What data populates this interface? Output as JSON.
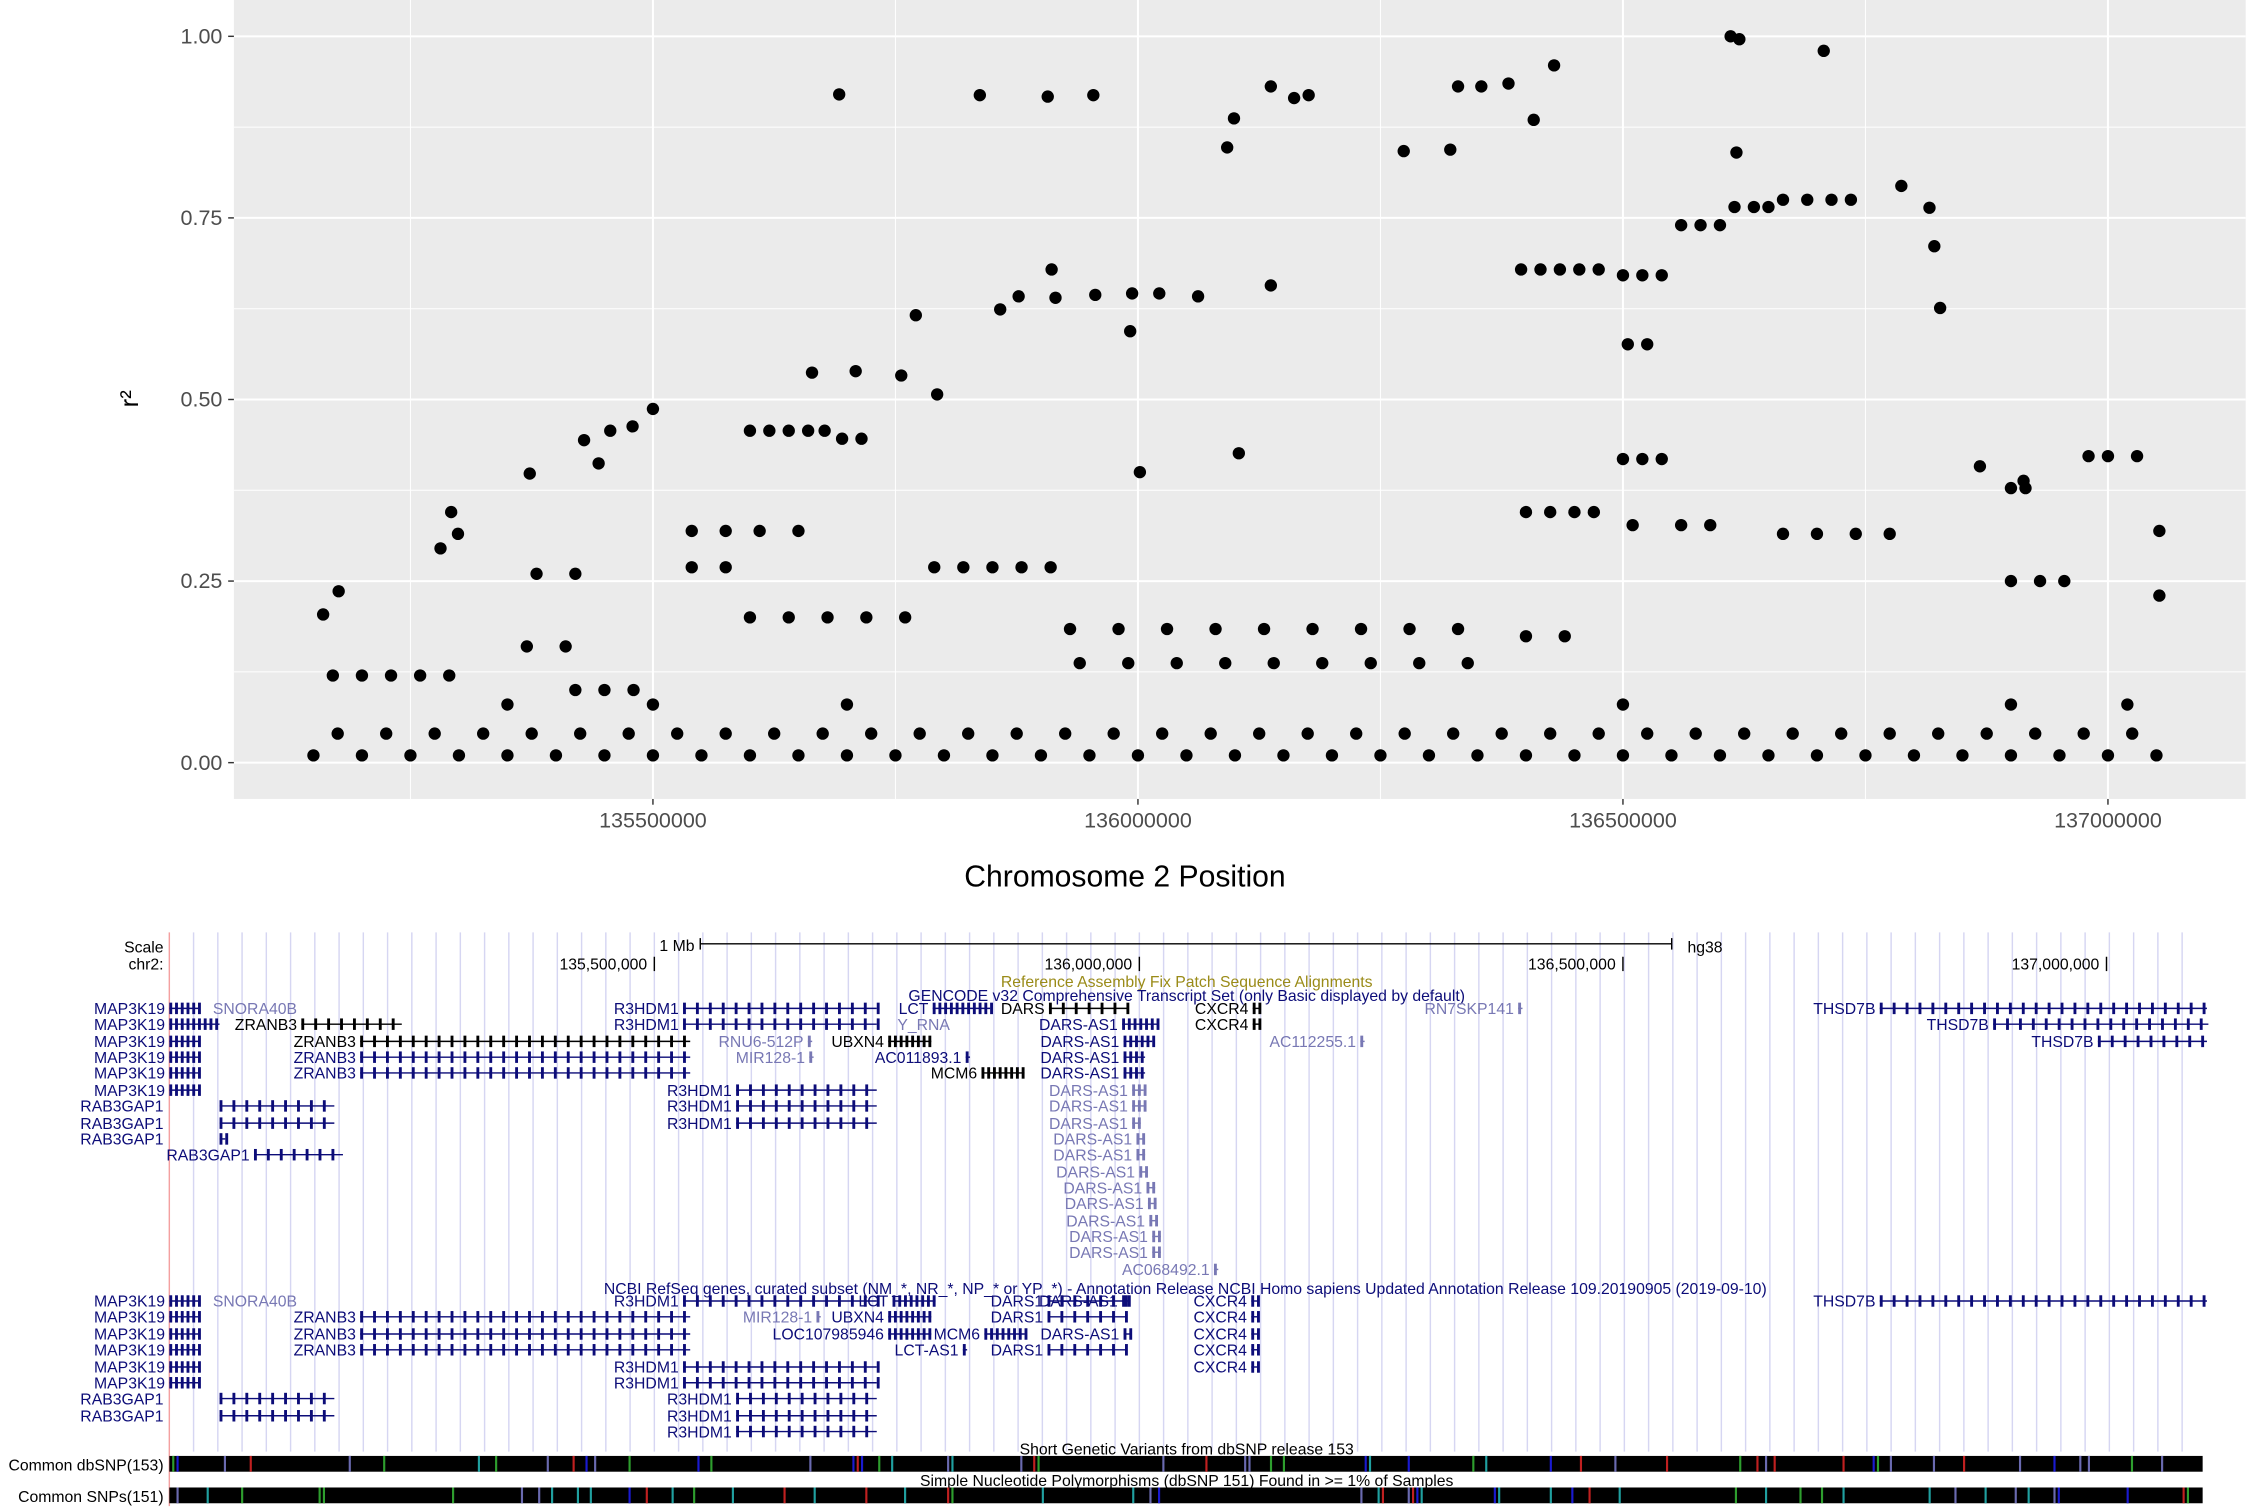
{
  "chart_data": {
    "type": "scatter",
    "xlabel": "Chromosome 2 Position",
    "ylabel": "r²",
    "color": "#000000",
    "panel_color": "#ebebeb",
    "grid": true,
    "xlim": [
      135068000,
      137142000
    ],
    "ylim": [
      -0.05,
      1.05
    ],
    "xticks": [
      135500000,
      136000000,
      136500000,
      137000000
    ],
    "yticks": [
      {
        "value": 0,
        "label": "0.00"
      },
      {
        "value": 0.25,
        "label": "0.25"
      },
      {
        "value": 0.5,
        "label": "0.50"
      },
      {
        "value": 0.75,
        "label": "0.75"
      },
      {
        "value": 1,
        "label": "1.00"
      }
    ],
    "x": [
      135150000,
      135200000,
      135250000,
      135300000,
      135350000,
      135400000,
      135450000,
      135500000,
      135550000,
      135600000,
      135650000,
      135700000,
      135750000,
      135800000,
      135850000,
      135900000,
      135950000,
      136000000,
      136050000,
      136100000,
      136150000,
      136200000,
      136250000,
      136300000,
      136350000,
      136400000,
      136450000,
      136500000,
      136550000,
      136600000,
      136650000,
      136700000,
      136750000,
      136800000,
      136850000,
      136900000,
      136950000,
      137000000,
      137050000,
      135175000,
      135225000,
      135275000,
      135325000,
      135375000,
      135425000,
      135475000,
      135525000,
      135575000,
      135625000,
      135675000,
      135725000,
      135775000,
      135825000,
      135875000,
      135925000,
      135975000,
      136025000,
      136075000,
      136125000,
      136175000,
      136225000,
      136275000,
      136325000,
      136375000,
      136425000,
      136475000,
      136525000,
      136575000,
      136625000,
      136675000,
      136725000,
      136775000,
      136825000,
      136875000,
      136925000,
      136975000,
      137025000,
      135692000,
      135837000,
      135907000,
      135954000,
      136092000,
      136099000,
      136137000,
      136161000,
      136176000,
      136274000,
      136322000,
      136330000,
      136354000,
      136382000,
      136408000,
      136429000,
      136611000,
      136620000,
      136707000,
      136617000,
      135771000,
      135793000,
      135858000,
      135877000,
      135911000,
      135915000,
      135956000,
      135994000,
      135992000,
      136022000,
      136062000,
      136137000,
      136104000,
      136002000,
      136395000,
      136415000,
      136435000,
      136455000,
      136475000,
      136500000,
      136520000,
      136540000,
      136505000,
      136525000,
      136560000,
      136580000,
      136600000,
      136615000,
      136635000,
      136650000,
      136665000,
      136690000,
      136715000,
      136735000,
      136787000,
      136816000,
      136821000,
      136827000,
      135600000,
      135620000,
      135640000,
      135660000,
      135677000,
      135695000,
      135715000,
      135664000,
      135709000,
      135756000,
      136500000,
      136520000,
      136540000,
      136980000,
      137000000,
      137030000,
      135373000,
      135429000,
      135456000,
      135479000,
      135500000,
      135444000,
      135292000,
      135299000,
      135281000,
      136400000,
      136425000,
      136450000,
      136470000,
      136510000,
      136560000,
      136590000,
      136665000,
      136700000,
      136740000,
      136775000,
      135540000,
      135575000,
      135610000,
      135650000,
      135540000,
      135575000,
      135790000,
      135820000,
      135850000,
      135880000,
      135910000,
      135930000,
      135980000,
      136030000,
      136080000,
      136130000,
      136180000,
      136230000,
      136280000,
      136330000,
      135940000,
      135990000,
      136040000,
      136090000,
      136140000,
      136190000,
      136240000,
      136290000,
      136340000,
      136400000,
      136440000,
      136900000,
      136930000,
      136955000,
      136900000,
      136915000,
      136868000,
      136913000,
      137053000,
      137053000,
      135170000,
      135200000,
      135230000,
      135260000,
      135290000,
      135160000,
      135176000,
      135420000,
      135450000,
      135480000,
      135600000,
      135640000,
      135680000,
      135720000,
      135760000,
      135350000,
      135500000,
      135700000,
      136500000,
      136900000,
      137020000,
      135370000,
      135410000,
      135380000,
      135420000
    ],
    "values": [
      0.01,
      0.01,
      0.01,
      0.01,
      0.01,
      0.01,
      0.01,
      0.01,
      0.01,
      0.01,
      0.01,
      0.01,
      0.01,
      0.01,
      0.01,
      0.01,
      0.01,
      0.01,
      0.01,
      0.01,
      0.01,
      0.01,
      0.01,
      0.01,
      0.01,
      0.01,
      0.01,
      0.01,
      0.01,
      0.01,
      0.01,
      0.01,
      0.01,
      0.01,
      0.01,
      0.01,
      0.01,
      0.01,
      0.01,
      0.04,
      0.04,
      0.04,
      0.04,
      0.04,
      0.04,
      0.04,
      0.04,
      0.04,
      0.04,
      0.04,
      0.04,
      0.04,
      0.04,
      0.04,
      0.04,
      0.04,
      0.04,
      0.04,
      0.04,
      0.04,
      0.04,
      0.04,
      0.04,
      0.04,
      0.04,
      0.04,
      0.04,
      0.04,
      0.04,
      0.04,
      0.04,
      0.04,
      0.04,
      0.04,
      0.04,
      0.04,
      0.04,
      0.92,
      0.919,
      0.917,
      0.919,
      0.847,
      0.887,
      0.931,
      0.915,
      0.919,
      0.842,
      0.844,
      0.931,
      0.931,
      0.935,
      0.885,
      0.96,
      1.0,
      0.996,
      0.98,
      0.84,
      0.616,
      0.507,
      0.624,
      0.642,
      0.679,
      0.64,
      0.644,
      0.646,
      0.594,
      0.646,
      0.642,
      0.657,
      0.426,
      0.4,
      0.679,
      0.679,
      0.679,
      0.679,
      0.679,
      0.671,
      0.671,
      0.671,
      0.576,
      0.576,
      0.74,
      0.74,
      0.74,
      0.765,
      0.765,
      0.765,
      0.775,
      0.775,
      0.775,
      0.775,
      0.794,
      0.764,
      0.711,
      0.626,
      0.457,
      0.457,
      0.457,
      0.457,
      0.457,
      0.446,
      0.446,
      0.537,
      0.539,
      0.533,
      0.418,
      0.418,
      0.418,
      0.422,
      0.422,
      0.422,
      0.398,
      0.444,
      0.457,
      0.463,
      0.487,
      0.412,
      0.345,
      0.315,
      0.295,
      0.345,
      0.345,
      0.345,
      0.345,
      0.327,
      0.327,
      0.327,
      0.315,
      0.315,
      0.315,
      0.315,
      0.319,
      0.319,
      0.319,
      0.319,
      0.269,
      0.269,
      0.269,
      0.269,
      0.269,
      0.269,
      0.269,
      0.184,
      0.184,
      0.184,
      0.184,
      0.184,
      0.184,
      0.184,
      0.184,
      0.184,
      0.137,
      0.137,
      0.137,
      0.137,
      0.137,
      0.137,
      0.137,
      0.137,
      0.137,
      0.174,
      0.174,
      0.25,
      0.25,
      0.25,
      0.378,
      0.378,
      0.408,
      0.388,
      0.319,
      0.23,
      0.12,
      0.12,
      0.12,
      0.12,
      0.12,
      0.204,
      0.236,
      0.1,
      0.1,
      0.1,
      0.2,
      0.2,
      0.2,
      0.2,
      0.2,
      0.08,
      0.08,
      0.08,
      0.08,
      0.08,
      0.08,
      0.16,
      0.16,
      0.26,
      0.26
    ]
  },
  "genome_browser": {
    "scale_label": "Scale",
    "chrom_label": "chr2:",
    "scale_bar_label": "1 Mb",
    "assembly": "hg38",
    "positions": [
      "135,500,000",
      "136,000,000",
      "136,500,000",
      "137,000,000"
    ],
    "fix_patch_track": "Reference Assembly Fix Patch Sequence Alignments",
    "gencode_track": "GENCODE v32 Comprehensive Transcript Set (only Basic displayed by default)",
    "gencode_genes": [
      {
        "name": "MAP3K19",
        "color": "#0c0c78"
      },
      {
        "name": "SNORA40B",
        "color": "#7878b4"
      },
      {
        "name": "R3HDM1",
        "color": "#0c0c78"
      },
      {
        "name": "LCT",
        "color": "#0c0c78"
      },
      {
        "name": "DARS",
        "color": "#000000"
      },
      {
        "name": "CXCR4",
        "color": "#000000"
      },
      {
        "name": "RN7SKP141",
        "color": "#7878b4"
      },
      {
        "name": "THSD7B",
        "color": "#0c0c78"
      },
      {
        "name": "MAP3K19",
        "color": "#0c0c78"
      },
      {
        "name": "ZRANB3",
        "color": "#000000"
      },
      {
        "name": "R3HDM1",
        "color": "#0c0c78"
      },
      {
        "name": "Y_RNA",
        "color": "#7878b4"
      },
      {
        "name": "DARS-AS1",
        "color": "#0c0c78"
      },
      {
        "name": "CXCR4",
        "color": "#000000"
      },
      {
        "name": "THSD7B",
        "color": "#0c0c78"
      },
      {
        "name": "MAP3K19",
        "color": "#0c0c78"
      },
      {
        "name": "ZRANB3",
        "color": "#000000"
      },
      {
        "name": "RNU6-512P",
        "color": "#7878b4"
      },
      {
        "name": "UBXN4",
        "color": "#000000"
      },
      {
        "name": "DARS-AS1",
        "color": "#0c0c78"
      },
      {
        "name": "AC112255.1",
        "color": "#7878b4"
      },
      {
        "name": "THSD7B",
        "color": "#0c0c78"
      },
      {
        "name": "MAP3K19",
        "color": "#0c0c78"
      },
      {
        "name": "ZRANB3",
        "color": "#0c0c78"
      },
      {
        "name": "MIR128-1",
        "color": "#7878b4"
      },
      {
        "name": "AC011893.1",
        "color": "#0c0c78"
      },
      {
        "name": "DARS-AS1",
        "color": "#0c0c78"
      },
      {
        "name": "MAP3K19",
        "color": "#0c0c78"
      },
      {
        "name": "ZRANB3",
        "color": "#0c0c78"
      },
      {
        "name": "MCM6",
        "color": "#000000"
      },
      {
        "name": "DARS-AS1",
        "color": "#0c0c78"
      },
      {
        "name": "MAP3K19",
        "color": "#0c0c78"
      },
      {
        "name": "R3HDM1",
        "color": "#0c0c78"
      },
      {
        "name": "DARS-AS1",
        "color": "#7878b4"
      },
      {
        "name": "RAB3GAP1",
        "color": "#0c0c78"
      },
      {
        "name": "R3HDM1",
        "color": "#0c0c78"
      },
      {
        "name": "DARS-AS1",
        "color": "#7878b4"
      },
      {
        "name": "RAB3GAP1",
        "color": "#0c0c78"
      },
      {
        "name": "R3HDM1",
        "color": "#0c0c78"
      },
      {
        "name": "DARS-AS1",
        "color": "#7878b4"
      },
      {
        "name": "RAB3GAP1",
        "color": "#0c0c78"
      },
      {
        "name": "DARS-AS1",
        "color": "#7878b4"
      },
      {
        "name": "RAB3GAP1",
        "color": "#0c0c78"
      },
      {
        "name": "DARS-AS1",
        "color": "#7878b4"
      },
      {
        "name": "DARS-AS1",
        "color": "#7878b4"
      },
      {
        "name": "DARS-AS1",
        "color": "#7878b4"
      },
      {
        "name": "DARS-AS1",
        "color": "#7878b4"
      },
      {
        "name": "DARS-AS1",
        "color": "#7878b4"
      },
      {
        "name": "DARS-AS1",
        "color": "#7878b4"
      },
      {
        "name": "DARS-AS1",
        "color": "#7878b4"
      },
      {
        "name": "AC068492.1",
        "color": "#7878b4"
      }
    ],
    "refseq_track": "NCBI RefSeq genes, curated subset (NM_*, NR_*, NP_* or YP_*) - Annotation Release NCBI Homo sapiens Updated Annotation Release 109.20190905 (2019-09-10)",
    "refseq_genes": [
      {
        "name": "MAP3K19",
        "color": "#0c0c78"
      },
      {
        "name": "SNORA40B",
        "color": "#7878b4"
      },
      {
        "name": "R3HDM1",
        "color": "#0c0c78"
      },
      {
        "name": "LCT",
        "color": "#0c0c78"
      },
      {
        "name": "DARS1",
        "color": "#0c0c78"
      },
      {
        "name": "DARS-AS1",
        "color": "#0c0c78"
      },
      {
        "name": "CXCR4",
        "color": "#0c0c78"
      },
      {
        "name": "THSD7B",
        "color": "#0c0c78"
      },
      {
        "name": "MAP3K19",
        "color": "#0c0c78"
      },
      {
        "name": "ZRANB3",
        "color": "#0c0c78"
      },
      {
        "name": "MIR128-1",
        "color": "#7878b4"
      },
      {
        "name": "UBXN4",
        "color": "#0c0c78"
      },
      {
        "name": "DARS1",
        "color": "#0c0c78"
      },
      {
        "name": "CXCR4",
        "color": "#0c0c78"
      },
      {
        "name": "MAP3K19",
        "color": "#0c0c78"
      },
      {
        "name": "ZRANB3",
        "color": "#0c0c78"
      },
      {
        "name": "LOC107985946",
        "color": "#0c0c78"
      },
      {
        "name": "MCM6",
        "color": "#0c0c78"
      },
      {
        "name": "DARS-AS1",
        "color": "#0c0c78"
      },
      {
        "name": "CXCR4",
        "color": "#0c0c78"
      },
      {
        "name": "MAP3K19",
        "color": "#0c0c78"
      },
      {
        "name": "ZRANB3",
        "color": "#0c0c78"
      },
      {
        "name": "LCT-AS1",
        "color": "#0c0c78"
      },
      {
        "name": "DARS1",
        "color": "#0c0c78"
      },
      {
        "name": "CXCR4",
        "color": "#0c0c78"
      },
      {
        "name": "MAP3K19",
        "color": "#0c0c78"
      },
      {
        "name": "R3HDM1",
        "color": "#0c0c78"
      },
      {
        "name": "CXCR4",
        "color": "#0c0c78"
      },
      {
        "name": "MAP3K19",
        "color": "#0c0c78"
      },
      {
        "name": "R3HDM1",
        "color": "#0c0c78"
      },
      {
        "name": "RAB3GAP1",
        "color": "#0c0c78"
      },
      {
        "name": "R3HDM1",
        "color": "#0c0c78"
      },
      {
        "name": "RAB3GAP1",
        "color": "#0c0c78"
      },
      {
        "name": "R3HDM1",
        "color": "#0c0c78"
      },
      {
        "name": "R3HDM1",
        "color": "#0c0c78"
      }
    ],
    "dbsnp153_track": "Short Genetic Variants from dbSNP release 153",
    "dbsnp153_label": "Common dbSNP(153)",
    "snp151_track": "Simple Nucleotide Polymorphisms (dbSNP 151) Found in >= 1% of Samples",
    "snp151_label": "Common SNPs(151)"
  }
}
